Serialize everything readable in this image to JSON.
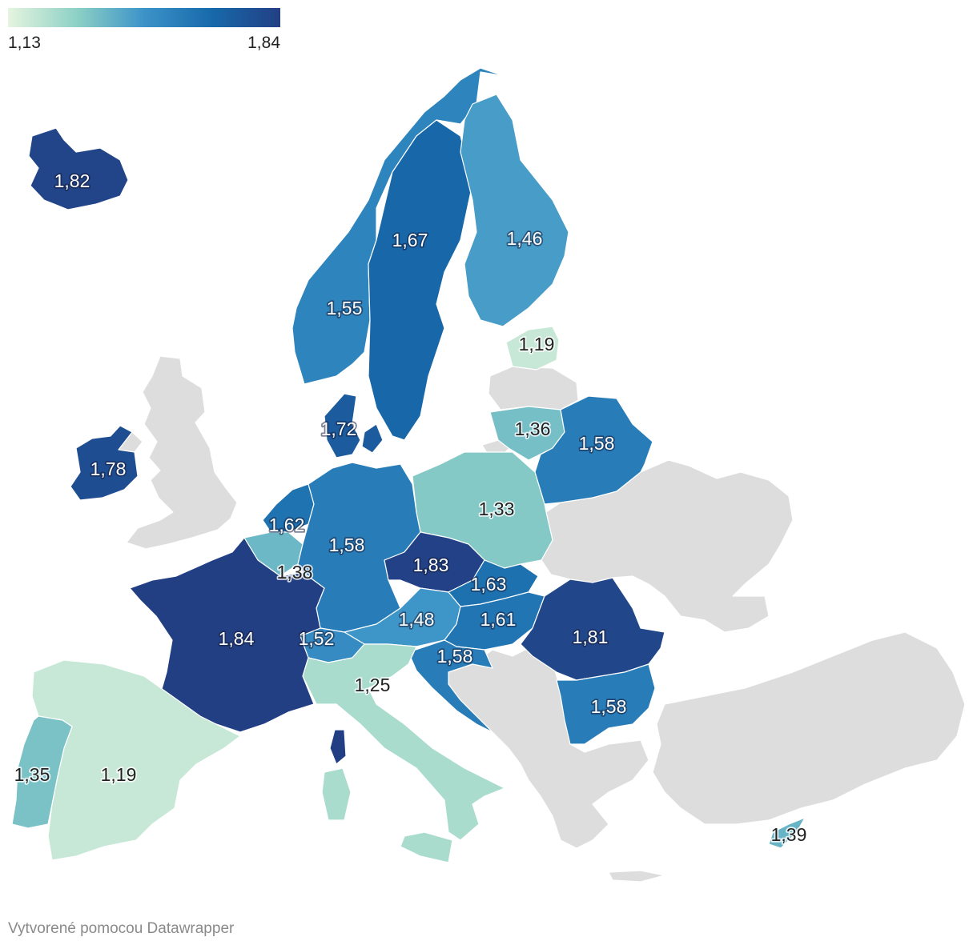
{
  "legend": {
    "min_label": "1,13",
    "max_label": "1,84",
    "scale_colors": [
      "#e5f4df",
      "#8ed1c6",
      "#3c93c8",
      "#1769aa",
      "#233f84"
    ]
  },
  "credit": "Vytvorené pomocou Datawrapper",
  "nodata_color": "#dddddd",
  "regions": [
    {
      "id": "iceland",
      "label": "1,82",
      "value": 1.82
    },
    {
      "id": "norway",
      "label": "1,55",
      "value": 1.55
    },
    {
      "id": "sweden",
      "label": "1,67",
      "value": 1.67
    },
    {
      "id": "finland",
      "label": "1,46",
      "value": 1.46
    },
    {
      "id": "estonia",
      "label": "1,19",
      "value": 1.19
    },
    {
      "id": "lithuania",
      "label": "1,36",
      "value": 1.36
    },
    {
      "id": "belarus",
      "label": "1,58",
      "value": 1.58
    },
    {
      "id": "denmark",
      "label": "1,72",
      "value": 1.72
    },
    {
      "id": "ireland",
      "label": "1,78",
      "value": 1.78
    },
    {
      "id": "netherlands",
      "label": "1,62",
      "value": 1.62
    },
    {
      "id": "belgium",
      "label": "1,38",
      "value": 1.38
    },
    {
      "id": "germany",
      "label": "1,58",
      "value": 1.58
    },
    {
      "id": "poland",
      "label": "1,33",
      "value": 1.33
    },
    {
      "id": "czechia",
      "label": "1,83",
      "value": 1.83
    },
    {
      "id": "slovakia",
      "label": "1,63",
      "value": 1.63
    },
    {
      "id": "austria",
      "label": "1,48",
      "value": 1.48
    },
    {
      "id": "hungary",
      "label": "1,61",
      "value": 1.61
    },
    {
      "id": "switzerland",
      "label": "1,52",
      "value": 1.52
    },
    {
      "id": "slovenia-croatia",
      "label": "1,58",
      "value": 1.58
    },
    {
      "id": "romania",
      "label": "1,81",
      "value": 1.81
    },
    {
      "id": "bulgaria",
      "label": "1,58",
      "value": 1.58
    },
    {
      "id": "france",
      "label": "1,84",
      "value": 1.84
    },
    {
      "id": "italy",
      "label": "1,25",
      "value": 1.25
    },
    {
      "id": "spain",
      "label": "1,19",
      "value": 1.19
    },
    {
      "id": "portugal",
      "label": "1,35",
      "value": 1.35
    },
    {
      "id": "cyprus",
      "label": "1,39",
      "value": 1.39
    }
  ]
}
